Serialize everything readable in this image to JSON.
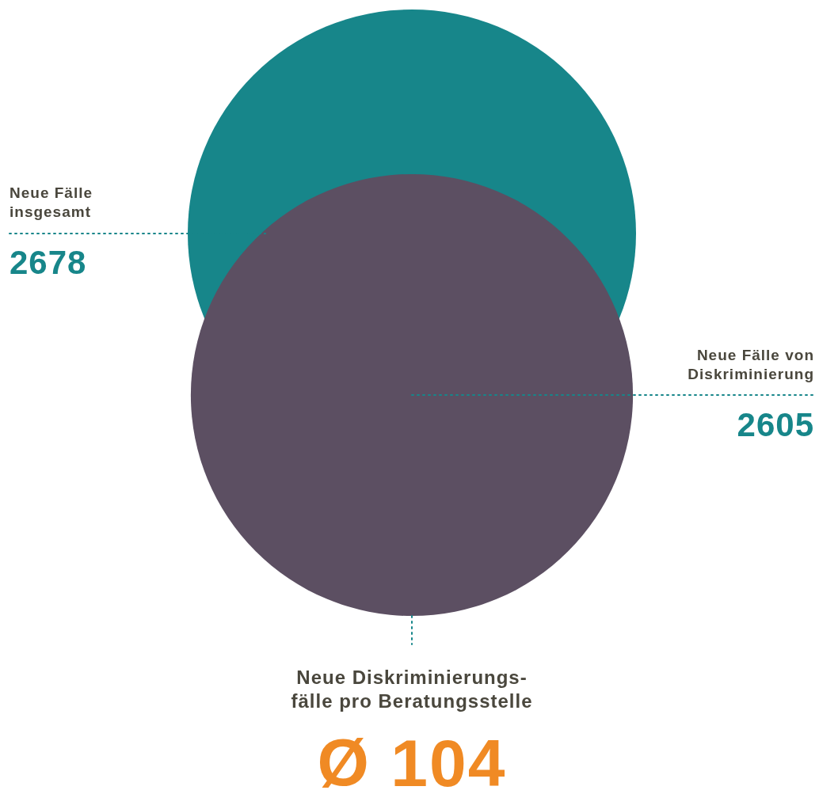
{
  "chart_data": {
    "type": "other",
    "categories": [
      "Neue Fälle\ninsgesamt",
      "Neue Fälle von\nDiskriminierung"
    ],
    "values": [
      2678,
      2605
    ],
    "data_labels": true,
    "colors": [
      "#17868a",
      "#5c4f62"
    ],
    "annotations": [
      "Neue Diskriminierungs-\nfälle pro Beratungsstelle",
      "Ø 104"
    ]
  }
}
